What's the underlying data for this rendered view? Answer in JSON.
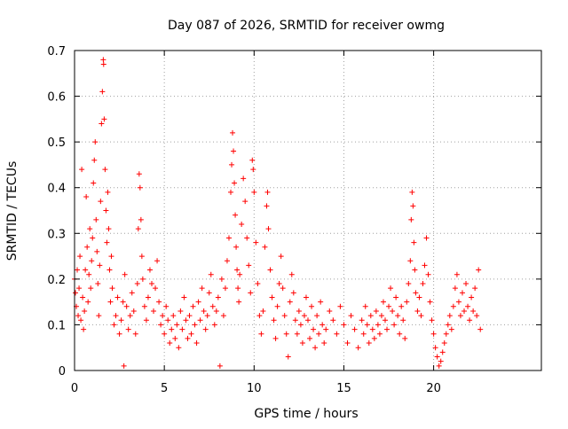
{
  "chart_data": {
    "type": "scatter",
    "title": "Day 087 of 2026, SRMTID for receiver owmg",
    "xlabel": "GPS time / hours",
    "ylabel": "SRMTID / TECUs",
    "xlim": [
      0,
      26
    ],
    "ylim": [
      0,
      0.7
    ],
    "x_ticks": [
      0,
      5,
      10,
      15,
      20
    ],
    "y_ticks": [
      0,
      0.1,
      0.2,
      0.3,
      0.4,
      0.5,
      0.6,
      0.7
    ],
    "x_tick_labels": [
      "0",
      "5",
      "10",
      "15",
      "20"
    ],
    "y_tick_labels": [
      "0",
      "0.1",
      "0.2",
      "0.3",
      "0.4",
      "0.5",
      "0.6",
      "0.7"
    ],
    "grid": true,
    "marker": "+",
    "color": "#ff0000",
    "series": [
      {
        "name": "SRMTID",
        "points": [
          [
            0.0,
            0.2
          ],
          [
            0.05,
            0.17
          ],
          [
            0.1,
            0.14
          ],
          [
            0.15,
            0.22
          ],
          [
            0.2,
            0.12
          ],
          [
            0.25,
            0.18
          ],
          [
            0.3,
            0.25
          ],
          [
            0.35,
            0.11
          ],
          [
            0.4,
            0.44
          ],
          [
            0.45,
            0.16
          ],
          [
            0.5,
            0.09
          ],
          [
            0.55,
            0.13
          ],
          [
            0.6,
            0.22
          ],
          [
            0.65,
            0.38
          ],
          [
            0.7,
            0.27
          ],
          [
            0.75,
            0.15
          ],
          [
            0.8,
            0.21
          ],
          [
            0.85,
            0.31
          ],
          [
            0.9,
            0.18
          ],
          [
            0.95,
            0.24
          ],
          [
            1.0,
            0.29
          ],
          [
            1.05,
            0.41
          ],
          [
            1.1,
            0.46
          ],
          [
            1.15,
            0.5
          ],
          [
            1.2,
            0.33
          ],
          [
            1.25,
            0.26
          ],
          [
            1.3,
            0.19
          ],
          [
            1.35,
            0.12
          ],
          [
            1.4,
            0.23
          ],
          [
            1.45,
            0.37
          ],
          [
            1.5,
            0.54
          ],
          [
            1.55,
            0.61
          ],
          [
            1.6,
            0.68
          ],
          [
            1.62,
            0.67
          ],
          [
            1.65,
            0.55
          ],
          [
            1.7,
            0.44
          ],
          [
            1.75,
            0.35
          ],
          [
            1.8,
            0.28
          ],
          [
            1.85,
            0.39
          ],
          [
            1.9,
            0.31
          ],
          [
            1.95,
            0.22
          ],
          [
            2.0,
            0.15
          ],
          [
            2.05,
            0.25
          ],
          [
            2.1,
            0.18
          ],
          [
            2.2,
            0.1
          ],
          [
            2.3,
            0.12
          ],
          [
            2.4,
            0.16
          ],
          [
            2.5,
            0.08
          ],
          [
            2.6,
            0.11
          ],
          [
            2.7,
            0.15
          ],
          [
            2.75,
            0.01
          ],
          [
            2.8,
            0.21
          ],
          [
            2.9,
            0.14
          ],
          [
            3.0,
            0.09
          ],
          [
            3.1,
            0.12
          ],
          [
            3.2,
            0.17
          ],
          [
            3.3,
            0.13
          ],
          [
            3.4,
            0.08
          ],
          [
            3.5,
            0.19
          ],
          [
            3.55,
            0.31
          ],
          [
            3.6,
            0.43
          ],
          [
            3.65,
            0.4
          ],
          [
            3.7,
            0.33
          ],
          [
            3.75,
            0.25
          ],
          [
            3.8,
            0.2
          ],
          [
            3.9,
            0.14
          ],
          [
            4.0,
            0.11
          ],
          [
            4.1,
            0.16
          ],
          [
            4.2,
            0.22
          ],
          [
            4.3,
            0.19
          ],
          [
            4.4,
            0.13
          ],
          [
            4.5,
            0.18
          ],
          [
            4.6,
            0.24
          ],
          [
            4.7,
            0.15
          ],
          [
            4.8,
            0.1
          ],
          [
            4.9,
            0.12
          ],
          [
            5.0,
            0.08
          ],
          [
            5.1,
            0.14
          ],
          [
            5.2,
            0.11
          ],
          [
            5.3,
            0.06
          ],
          [
            5.4,
            0.09
          ],
          [
            5.5,
            0.12
          ],
          [
            5.6,
            0.07
          ],
          [
            5.7,
            0.1
          ],
          [
            5.8,
            0.05
          ],
          [
            5.9,
            0.13
          ],
          [
            6.0,
            0.09
          ],
          [
            6.1,
            0.16
          ],
          [
            6.2,
            0.11
          ],
          [
            6.3,
            0.07
          ],
          [
            6.4,
            0.12
          ],
          [
            6.5,
            0.08
          ],
          [
            6.6,
            0.14
          ],
          [
            6.7,
            0.1
          ],
          [
            6.8,
            0.06
          ],
          [
            6.9,
            0.15
          ],
          [
            7.0,
            0.11
          ],
          [
            7.1,
            0.18
          ],
          [
            7.2,
            0.13
          ],
          [
            7.3,
            0.09
          ],
          [
            7.4,
            0.12
          ],
          [
            7.5,
            0.17
          ],
          [
            7.6,
            0.21
          ],
          [
            7.7,
            0.14
          ],
          [
            7.8,
            0.1
          ],
          [
            7.9,
            0.13
          ],
          [
            8.0,
            0.16
          ],
          [
            8.1,
            0.01
          ],
          [
            8.2,
            0.2
          ],
          [
            8.3,
            0.12
          ],
          [
            8.4,
            0.18
          ],
          [
            8.5,
            0.24
          ],
          [
            8.6,
            0.29
          ],
          [
            8.7,
            0.39
          ],
          [
            8.75,
            0.45
          ],
          [
            8.8,
            0.52
          ],
          [
            8.85,
            0.48
          ],
          [
            8.9,
            0.41
          ],
          [
            8.95,
            0.34
          ],
          [
            9.0,
            0.27
          ],
          [
            9.05,
            0.22
          ],
          [
            9.1,
            0.18
          ],
          [
            9.15,
            0.15
          ],
          [
            9.2,
            0.21
          ],
          [
            9.3,
            0.32
          ],
          [
            9.4,
            0.42
          ],
          [
            9.5,
            0.37
          ],
          [
            9.6,
            0.29
          ],
          [
            9.7,
            0.23
          ],
          [
            9.8,
            0.17
          ],
          [
            9.9,
            0.46
          ],
          [
            9.95,
            0.44
          ],
          [
            10.0,
            0.39
          ],
          [
            10.1,
            0.28
          ],
          [
            10.2,
            0.19
          ],
          [
            10.3,
            0.12
          ],
          [
            10.4,
            0.08
          ],
          [
            10.5,
            0.13
          ],
          [
            10.6,
            0.27
          ],
          [
            10.7,
            0.36
          ],
          [
            10.75,
            0.39
          ],
          [
            10.8,
            0.31
          ],
          [
            10.9,
            0.22
          ],
          [
            11.0,
            0.16
          ],
          [
            11.1,
            0.11
          ],
          [
            11.2,
            0.07
          ],
          [
            11.3,
            0.14
          ],
          [
            11.4,
            0.19
          ],
          [
            11.5,
            0.25
          ],
          [
            11.6,
            0.18
          ],
          [
            11.7,
            0.12
          ],
          [
            11.8,
            0.08
          ],
          [
            11.9,
            0.03
          ],
          [
            12.0,
            0.15
          ],
          [
            12.1,
            0.21
          ],
          [
            12.2,
            0.17
          ],
          [
            12.3,
            0.11
          ],
          [
            12.4,
            0.08
          ],
          [
            12.5,
            0.13
          ],
          [
            12.6,
            0.1
          ],
          [
            12.7,
            0.06
          ],
          [
            12.8,
            0.12
          ],
          [
            12.9,
            0.16
          ],
          [
            13.0,
            0.11
          ],
          [
            13.1,
            0.07
          ],
          [
            13.2,
            0.14
          ],
          [
            13.3,
            0.09
          ],
          [
            13.4,
            0.05
          ],
          [
            13.5,
            0.12
          ],
          [
            13.6,
            0.08
          ],
          [
            13.7,
            0.15
          ],
          [
            13.8,
            0.1
          ],
          [
            13.9,
            0.06
          ],
          [
            14.0,
            0.09
          ],
          [
            14.2,
            0.13
          ],
          [
            14.4,
            0.11
          ],
          [
            14.6,
            0.08
          ],
          [
            14.8,
            0.14
          ],
          [
            15.0,
            0.1
          ],
          [
            15.2,
            0.06
          ],
          [
            15.4,
            0.12
          ],
          [
            15.6,
            0.09
          ],
          [
            15.8,
            0.05
          ],
          [
            16.0,
            0.11
          ],
          [
            16.1,
            0.08
          ],
          [
            16.2,
            0.14
          ],
          [
            16.3,
            0.1
          ],
          [
            16.4,
            0.06
          ],
          [
            16.5,
            0.12
          ],
          [
            16.6,
            0.09
          ],
          [
            16.7,
            0.07
          ],
          [
            16.8,
            0.13
          ],
          [
            16.9,
            0.1
          ],
          [
            17.0,
            0.08
          ],
          [
            17.1,
            0.12
          ],
          [
            17.2,
            0.15
          ],
          [
            17.3,
            0.11
          ],
          [
            17.4,
            0.09
          ],
          [
            17.5,
            0.14
          ],
          [
            17.6,
            0.18
          ],
          [
            17.7,
            0.13
          ],
          [
            17.8,
            0.1
          ],
          [
            17.9,
            0.16
          ],
          [
            18.0,
            0.12
          ],
          [
            18.1,
            0.08
          ],
          [
            18.2,
            0.14
          ],
          [
            18.3,
            0.11
          ],
          [
            18.4,
            0.07
          ],
          [
            18.5,
            0.15
          ],
          [
            18.6,
            0.19
          ],
          [
            18.7,
            0.24
          ],
          [
            18.75,
            0.33
          ],
          [
            18.8,
            0.39
          ],
          [
            18.85,
            0.36
          ],
          [
            18.9,
            0.28
          ],
          [
            18.95,
            0.22
          ],
          [
            19.0,
            0.17
          ],
          [
            19.1,
            0.13
          ],
          [
            19.2,
            0.16
          ],
          [
            19.3,
            0.12
          ],
          [
            19.4,
            0.19
          ],
          [
            19.5,
            0.23
          ],
          [
            19.6,
            0.29
          ],
          [
            19.7,
            0.21
          ],
          [
            19.8,
            0.15
          ],
          [
            19.9,
            0.11
          ],
          [
            20.0,
            0.08
          ],
          [
            20.1,
            0.05
          ],
          [
            20.2,
            0.03
          ],
          [
            20.3,
            0.01
          ],
          [
            20.4,
            0.02
          ],
          [
            20.5,
            0.04
          ],
          [
            20.6,
            0.06
          ],
          [
            20.7,
            0.08
          ],
          [
            20.8,
            0.1
          ],
          [
            20.9,
            0.12
          ],
          [
            21.0,
            0.09
          ],
          [
            21.1,
            0.14
          ],
          [
            21.2,
            0.18
          ],
          [
            21.3,
            0.21
          ],
          [
            21.4,
            0.15
          ],
          [
            21.5,
            0.12
          ],
          [
            21.6,
            0.17
          ],
          [
            21.7,
            0.13
          ],
          [
            21.8,
            0.19
          ],
          [
            21.9,
            0.14
          ],
          [
            22.0,
            0.11
          ],
          [
            22.1,
            0.16
          ],
          [
            22.2,
            0.13
          ],
          [
            22.3,
            0.18
          ],
          [
            22.4,
            0.12
          ],
          [
            22.5,
            0.22
          ],
          [
            22.6,
            0.09
          ]
        ]
      }
    ]
  }
}
